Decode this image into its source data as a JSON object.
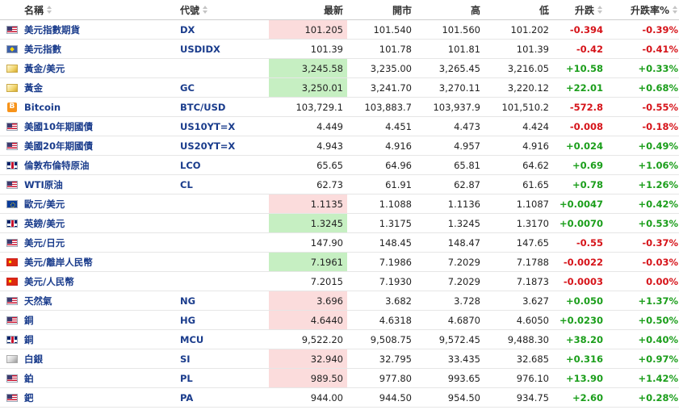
{
  "headers": {
    "name": "名稱",
    "code": "代號",
    "last": "最新",
    "open": "開市",
    "high": "高",
    "low": "低",
    "change": "升跌",
    "change_pct": "升跌率%"
  },
  "colors": {
    "up": "#1b9e1b",
    "down": "#d6141a",
    "highlight_up": "#c6efc2",
    "highlight_down": "#fbdcdc",
    "link": "#1a3c8c"
  },
  "rows": [
    {
      "flag": "us-flag-icon",
      "name": "美元指數期貨",
      "code": "DX",
      "last": "101.205",
      "open": "101.540",
      "high": "101.560",
      "low": "101.202",
      "change": "-0.394",
      "pct": "-0.39%",
      "dir": "down",
      "hl": "down"
    },
    {
      "flag": "dxy-icon",
      "name": "美元指數",
      "code": "USDIDX",
      "last": "101.39",
      "open": "101.78",
      "high": "101.81",
      "low": "101.39",
      "change": "-0.42",
      "pct": "-0.41%",
      "dir": "down",
      "hl": ""
    },
    {
      "flag": "gold-icon",
      "name": "黃金/美元",
      "code": "",
      "last": "3,245.58",
      "open": "3,235.00",
      "high": "3,265.45",
      "low": "3,216.05",
      "change": "+10.58",
      "pct": "+0.33%",
      "dir": "up",
      "hl": "up"
    },
    {
      "flag": "gold-icon",
      "name": "黃金",
      "code": "GC",
      "last": "3,250.01",
      "open": "3,241.70",
      "high": "3,270.11",
      "low": "3,220.12",
      "change": "+22.01",
      "pct": "+0.68%",
      "dir": "up",
      "hl": "up"
    },
    {
      "flag": "bitcoin-icon",
      "name": "Bitcoin",
      "code": "BTC/USD",
      "last": "103,729.1",
      "open": "103,883.7",
      "high": "103,937.9",
      "low": "101,510.2",
      "change": "-572.8",
      "pct": "-0.55%",
      "dir": "down",
      "hl": ""
    },
    {
      "flag": "us-flag-icon",
      "name": "美國10年期國債",
      "code": "US10YT=X",
      "last": "4.449",
      "open": "4.451",
      "high": "4.473",
      "low": "4.424",
      "change": "-0.008",
      "pct": "-0.18%",
      "dir": "down",
      "hl": ""
    },
    {
      "flag": "us-flag-icon",
      "name": "美國20年期國債",
      "code": "US20YT=X",
      "last": "4.943",
      "open": "4.916",
      "high": "4.957",
      "low": "4.916",
      "change": "+0.024",
      "pct": "+0.49%",
      "dir": "up",
      "hl": ""
    },
    {
      "flag": "uk-flag-icon",
      "name": "倫敦布倫特原油",
      "code": "LCO",
      "last": "65.65",
      "open": "64.96",
      "high": "65.81",
      "low": "64.62",
      "change": "+0.69",
      "pct": "+1.06%",
      "dir": "up",
      "hl": ""
    },
    {
      "flag": "us-flag-icon",
      "name": "WTI原油",
      "code": "CL",
      "last": "62.73",
      "open": "61.91",
      "high": "62.87",
      "low": "61.65",
      "change": "+0.78",
      "pct": "+1.26%",
      "dir": "up",
      "hl": ""
    },
    {
      "flag": "eu-flag-icon",
      "name": "歐元/美元",
      "code": "",
      "last": "1.1135",
      "open": "1.1088",
      "high": "1.1136",
      "low": "1.1087",
      "change": "+0.0047",
      "pct": "+0.42%",
      "dir": "up",
      "hl": "down"
    },
    {
      "flag": "uk-flag-icon",
      "name": "英鎊/美元",
      "code": "",
      "last": "1.3245",
      "open": "1.3175",
      "high": "1.3245",
      "low": "1.3170",
      "change": "+0.0070",
      "pct": "+0.53%",
      "dir": "up",
      "hl": "up"
    },
    {
      "flag": "us-flag-icon",
      "name": "美元/日元",
      "code": "",
      "last": "147.90",
      "open": "148.45",
      "high": "148.47",
      "low": "147.65",
      "change": "-0.55",
      "pct": "-0.37%",
      "dir": "down",
      "hl": ""
    },
    {
      "flag": "cn-flag-icon",
      "name": "美元/離岸人民幣",
      "code": "",
      "last": "7.1961",
      "open": "7.1986",
      "high": "7.2029",
      "low": "7.1788",
      "change": "-0.0022",
      "pct": "-0.03%",
      "dir": "down",
      "hl": "up"
    },
    {
      "flag": "cn-flag-icon",
      "name": "美元/人民幣",
      "code": "",
      "last": "7.2015",
      "open": "7.1930",
      "high": "7.2029",
      "low": "7.1873",
      "change": "-0.0003",
      "pct": "0.00%",
      "dir": "down",
      "hl": ""
    },
    {
      "flag": "us-flag-icon",
      "name": "天然氣",
      "code": "NG",
      "last": "3.696",
      "open": "3.682",
      "high": "3.728",
      "low": "3.627",
      "change": "+0.050",
      "pct": "+1.37%",
      "dir": "up",
      "hl": "down"
    },
    {
      "flag": "us-flag-icon",
      "name": "銅",
      "code": "HG",
      "last": "4.6440",
      "open": "4.6318",
      "high": "4.6870",
      "low": "4.6050",
      "change": "+0.0230",
      "pct": "+0.50%",
      "dir": "up",
      "hl": "down"
    },
    {
      "flag": "uk-flag-icon",
      "name": "銅",
      "code": "MCU",
      "last": "9,522.20",
      "open": "9,508.75",
      "high": "9,572.45",
      "low": "9,488.30",
      "change": "+38.20",
      "pct": "+0.40%",
      "dir": "up",
      "hl": ""
    },
    {
      "flag": "silver-icon",
      "name": "白銀",
      "code": "SI",
      "last": "32.940",
      "open": "32.795",
      "high": "33.435",
      "low": "32.685",
      "change": "+0.316",
      "pct": "+0.97%",
      "dir": "up",
      "hl": "down"
    },
    {
      "flag": "us-flag-icon",
      "name": "鉑",
      "code": "PL",
      "last": "989.50",
      "open": "977.80",
      "high": "993.65",
      "low": "976.10",
      "change": "+13.90",
      "pct": "+1.42%",
      "dir": "up",
      "hl": "down"
    },
    {
      "flag": "us-flag-icon",
      "name": "鈀",
      "code": "PA",
      "last": "944.00",
      "open": "944.50",
      "high": "954.50",
      "low": "934.75",
      "change": "+2.60",
      "pct": "+0.28%",
      "dir": "up",
      "hl": ""
    }
  ]
}
